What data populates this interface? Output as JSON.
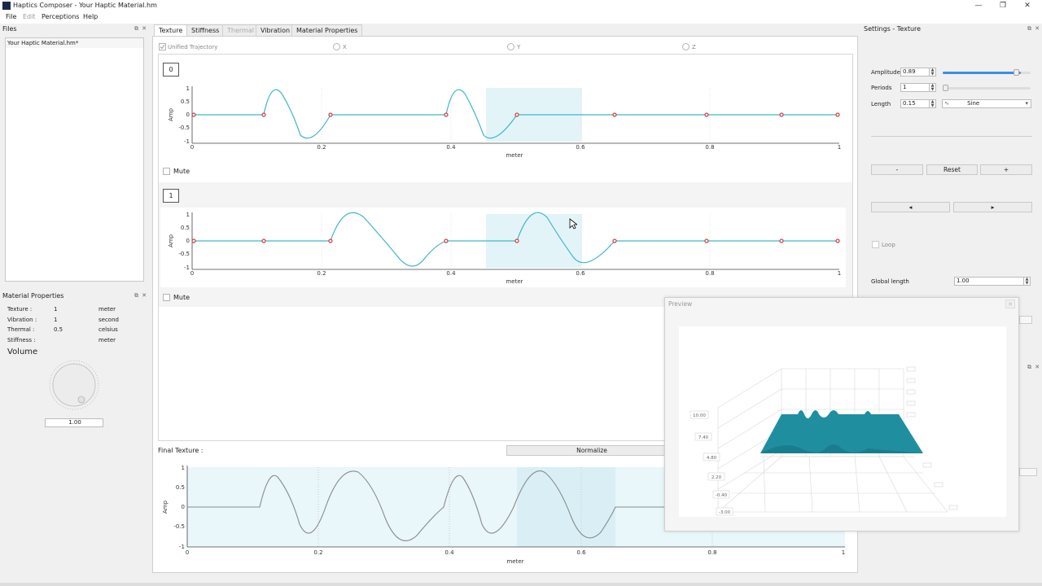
{
  "window": {
    "title": "Haptics Composer - Your Haptic Material.hm",
    "minimize": "—",
    "maximize": "❐",
    "close": "✕"
  },
  "menu": [
    "File",
    "Edit",
    "Perceptions",
    "Help"
  ],
  "files_panel": {
    "title": "Files",
    "items": [
      "Your Haptic Material.hm*"
    ],
    "dock": "⧉ ✕"
  },
  "tabs": [
    {
      "label": "Texture",
      "active": true
    },
    {
      "label": "Stiffness"
    },
    {
      "label": "Thermal",
      "disabled": true
    },
    {
      "label": "Vibration"
    },
    {
      "label": "Material Properties"
    }
  ],
  "axis_options": {
    "unified": "Unified Trajectory",
    "x": "X",
    "y": "Y",
    "z": "Z"
  },
  "trajectories": [
    {
      "index": "0",
      "mute": "Mute"
    },
    {
      "index": "1",
      "mute": "Mute"
    }
  ],
  "plot_axes": {
    "y_title": "Amp",
    "x_title": "meter",
    "y_ticks": [
      "1",
      "0.5",
      "0",
      "-0.5",
      "-1"
    ],
    "x_ticks": [
      "0",
      "0.2",
      "0.4",
      "0.6",
      "0.8",
      "1"
    ]
  },
  "final_texture": {
    "label": "Final Texture :",
    "normalize": "Normalize"
  },
  "material_properties": {
    "title": "Material Properties",
    "rows": [
      {
        "name": "Texture :",
        "value": "1",
        "unit": "meter"
      },
      {
        "name": "Vibration :",
        "value": "1",
        "unit": "second"
      },
      {
        "name": "Thermal :",
        "value": "0.5",
        "unit": "celsius"
      },
      {
        "name": "Stiffness :",
        "value": "",
        "unit": "meter"
      }
    ],
    "volume_label": "Volume",
    "volume_value": "1.00"
  },
  "settings": {
    "title": "Settings - Texture",
    "amplitude_label": "Amplitude",
    "amplitude_value": "0.89",
    "amplitude_level": 0.89,
    "periods_label": "Periods",
    "periods_value": "1",
    "length_label": "Length",
    "length_value": "0.15",
    "wave_icon": "∿",
    "waveform": "Sine",
    "minus": "-",
    "reset": "Reset",
    "plus": "+",
    "prev": "◂",
    "next": "▸",
    "loop": "Loop",
    "global_length_label": "Global length",
    "global_length_value": "1.00"
  },
  "preview": {
    "title": "Preview",
    "close": "✕",
    "z_ticks": [
      "10.00",
      "7.40",
      "4.80",
      "2.20",
      "-0.40",
      "-3.00"
    ]
  },
  "colors": {
    "wave": "#3fb6c9",
    "point": "#d23b3b",
    "highlight": "#e3f4f8",
    "surface": "#1f8fa0"
  }
}
